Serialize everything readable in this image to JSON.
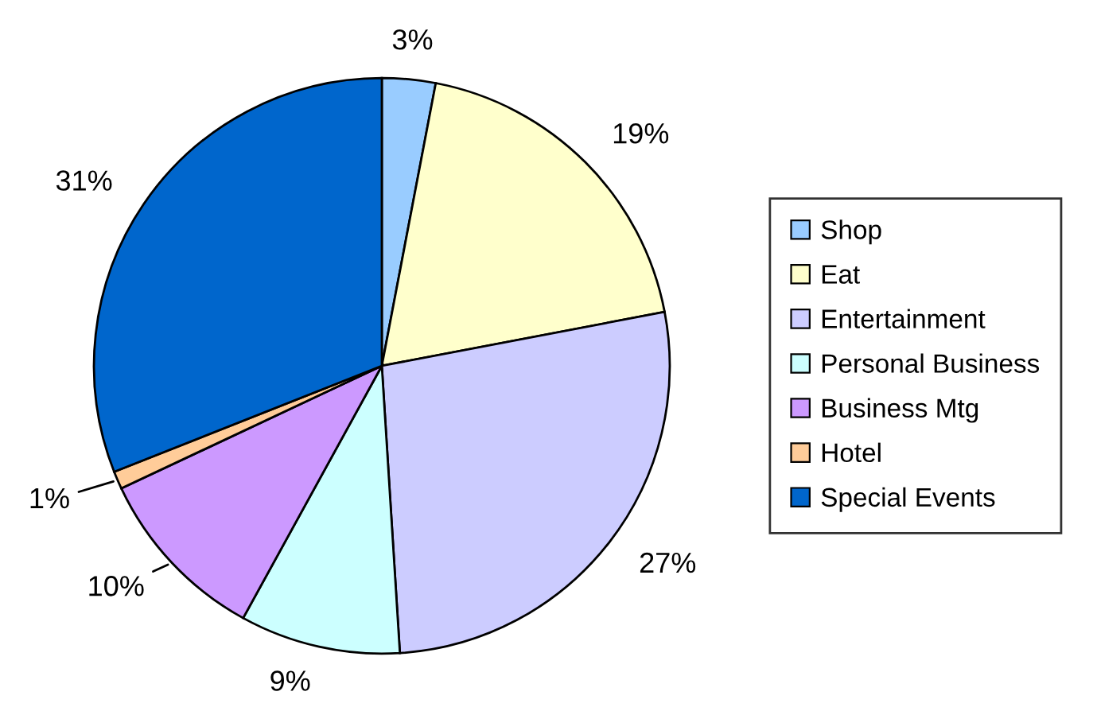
{
  "chart_data": {
    "type": "pie",
    "categories": [
      "Shop",
      "Eat",
      "Entertainment",
      "Personal Business",
      "Business Mtg",
      "Hotel",
      "Special Events"
    ],
    "values": [
      3,
      19,
      27,
      9,
      10,
      1,
      31
    ],
    "colors": [
      "#99ccff",
      "#ffffcc",
      "#ccccff",
      "#ccffff",
      "#cc99ff",
      "#ffcc99",
      "#0066cc"
    ],
    "value_labels": [
      "3%",
      "19%",
      "27%",
      "9%",
      "10%",
      "1%",
      "31%"
    ],
    "legend": "right"
  }
}
